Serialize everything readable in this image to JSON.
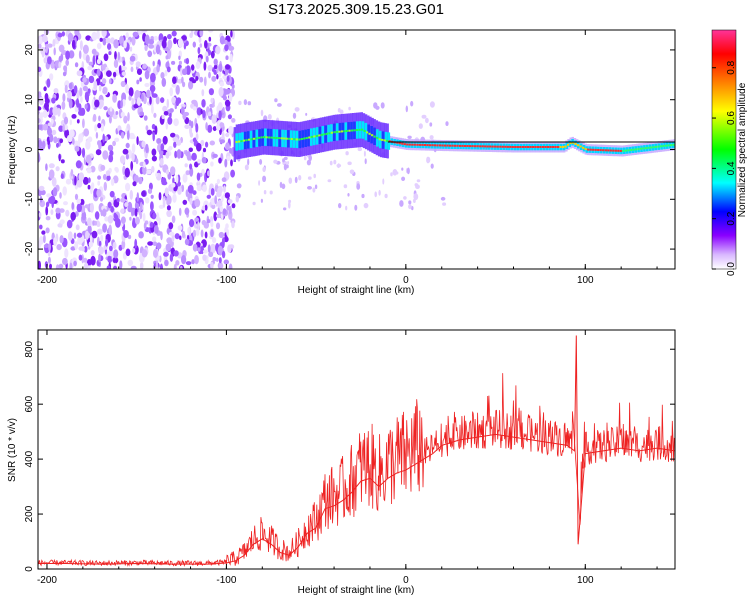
{
  "title": "S173.2025.309.15.23.G01",
  "chart_data": [
    {
      "type": "heatmap",
      "xlabel": "Height of straight line (km)",
      "ylabel": "Frequency (Hz)",
      "xlim": [
        -205,
        150
      ],
      "ylim": [
        -24,
        24
      ],
      "xticks": [
        -200,
        -100,
        0,
        100
      ],
      "yticks": [
        -20,
        -10,
        0,
        10,
        20
      ],
      "tick_labels_x": [
        "-200",
        "-100",
        "0",
        "100"
      ],
      "tick_labels_y": [
        "-20",
        "-10",
        "0",
        "10",
        "20"
      ],
      "colorbar": {
        "label": "Normalized spectral amplitude",
        "range": [
          0.0,
          0.95
        ],
        "ticks": [
          0.0,
          0.2,
          0.4,
          0.6,
          0.8
        ],
        "tick_labels": [
          "0.0",
          "0.2",
          "0.4",
          "0.6",
          "0.8"
        ],
        "colormap": [
          "#ffffff",
          "#e0c8ff",
          "#8000ff",
          "#0000ff",
          "#00ffff",
          "#00ff00",
          "#ffff00",
          "#ff8000",
          "#ff0000",
          "#ff3399"
        ]
      },
      "frequency_ridge": [
        {
          "x": -95,
          "y": 1.5
        },
        {
          "x": -80,
          "y": 2.5
        },
        {
          "x": -60,
          "y": 2.0
        },
        {
          "x": -40,
          "y": 3.5
        },
        {
          "x": -25,
          "y": 4.0
        },
        {
          "x": -15,
          "y": 2.0
        },
        {
          "x": 0,
          "y": 1.0
        },
        {
          "x": 20,
          "y": 0.8
        },
        {
          "x": 60,
          "y": 0.5
        },
        {
          "x": 88,
          "y": 0.5
        },
        {
          "x": 92,
          "y": 1.5
        },
        {
          "x": 100,
          "y": 0.0
        },
        {
          "x": 120,
          "y": -0.3
        },
        {
          "x": 150,
          "y": 1.0
        }
      ],
      "reference_line_hz": 1.5
    },
    {
      "type": "line",
      "xlabel": "Height of straight line (km)",
      "ylabel": "SNR (10 * v/v)",
      "xlim": [
        -205,
        150
      ],
      "ylim": [
        0,
        870
      ],
      "xticks": [
        -200,
        -100,
        0,
        100
      ],
      "yticks": [
        0,
        200,
        400,
        600,
        800
      ],
      "tick_labels_x": [
        "-200",
        "-100",
        "0",
        "100"
      ],
      "tick_labels_y": [
        "0",
        "200",
        "400",
        "600",
        "800"
      ],
      "color": "#ee2222",
      "series": [
        {
          "name": "SNR",
          "x": [
            -205,
            -190,
            -170,
            -150,
            -130,
            -110,
            -100,
            -95,
            -90,
            -85,
            -80,
            -75,
            -70,
            -65,
            -60,
            -55,
            -50,
            -45,
            -40,
            -35,
            -30,
            -25,
            -20,
            -15,
            -10,
            -5,
            0,
            5,
            10,
            15,
            20,
            25,
            30,
            40,
            50,
            60,
            70,
            80,
            90,
            94,
            95,
            96,
            100,
            110,
            120,
            130,
            140,
            150
          ],
          "y": [
            20,
            20,
            18,
            20,
            18,
            18,
            22,
            30,
            50,
            90,
            110,
            90,
            60,
            50,
            80,
            130,
            150,
            220,
            230,
            250,
            280,
            320,
            330,
            300,
            330,
            350,
            360,
            380,
            400,
            420,
            450,
            460,
            470,
            480,
            490,
            480,
            470,
            460,
            450,
            430,
            850,
            90,
            420,
            430,
            440,
            430,
            440,
            430
          ]
        }
      ]
    }
  ]
}
